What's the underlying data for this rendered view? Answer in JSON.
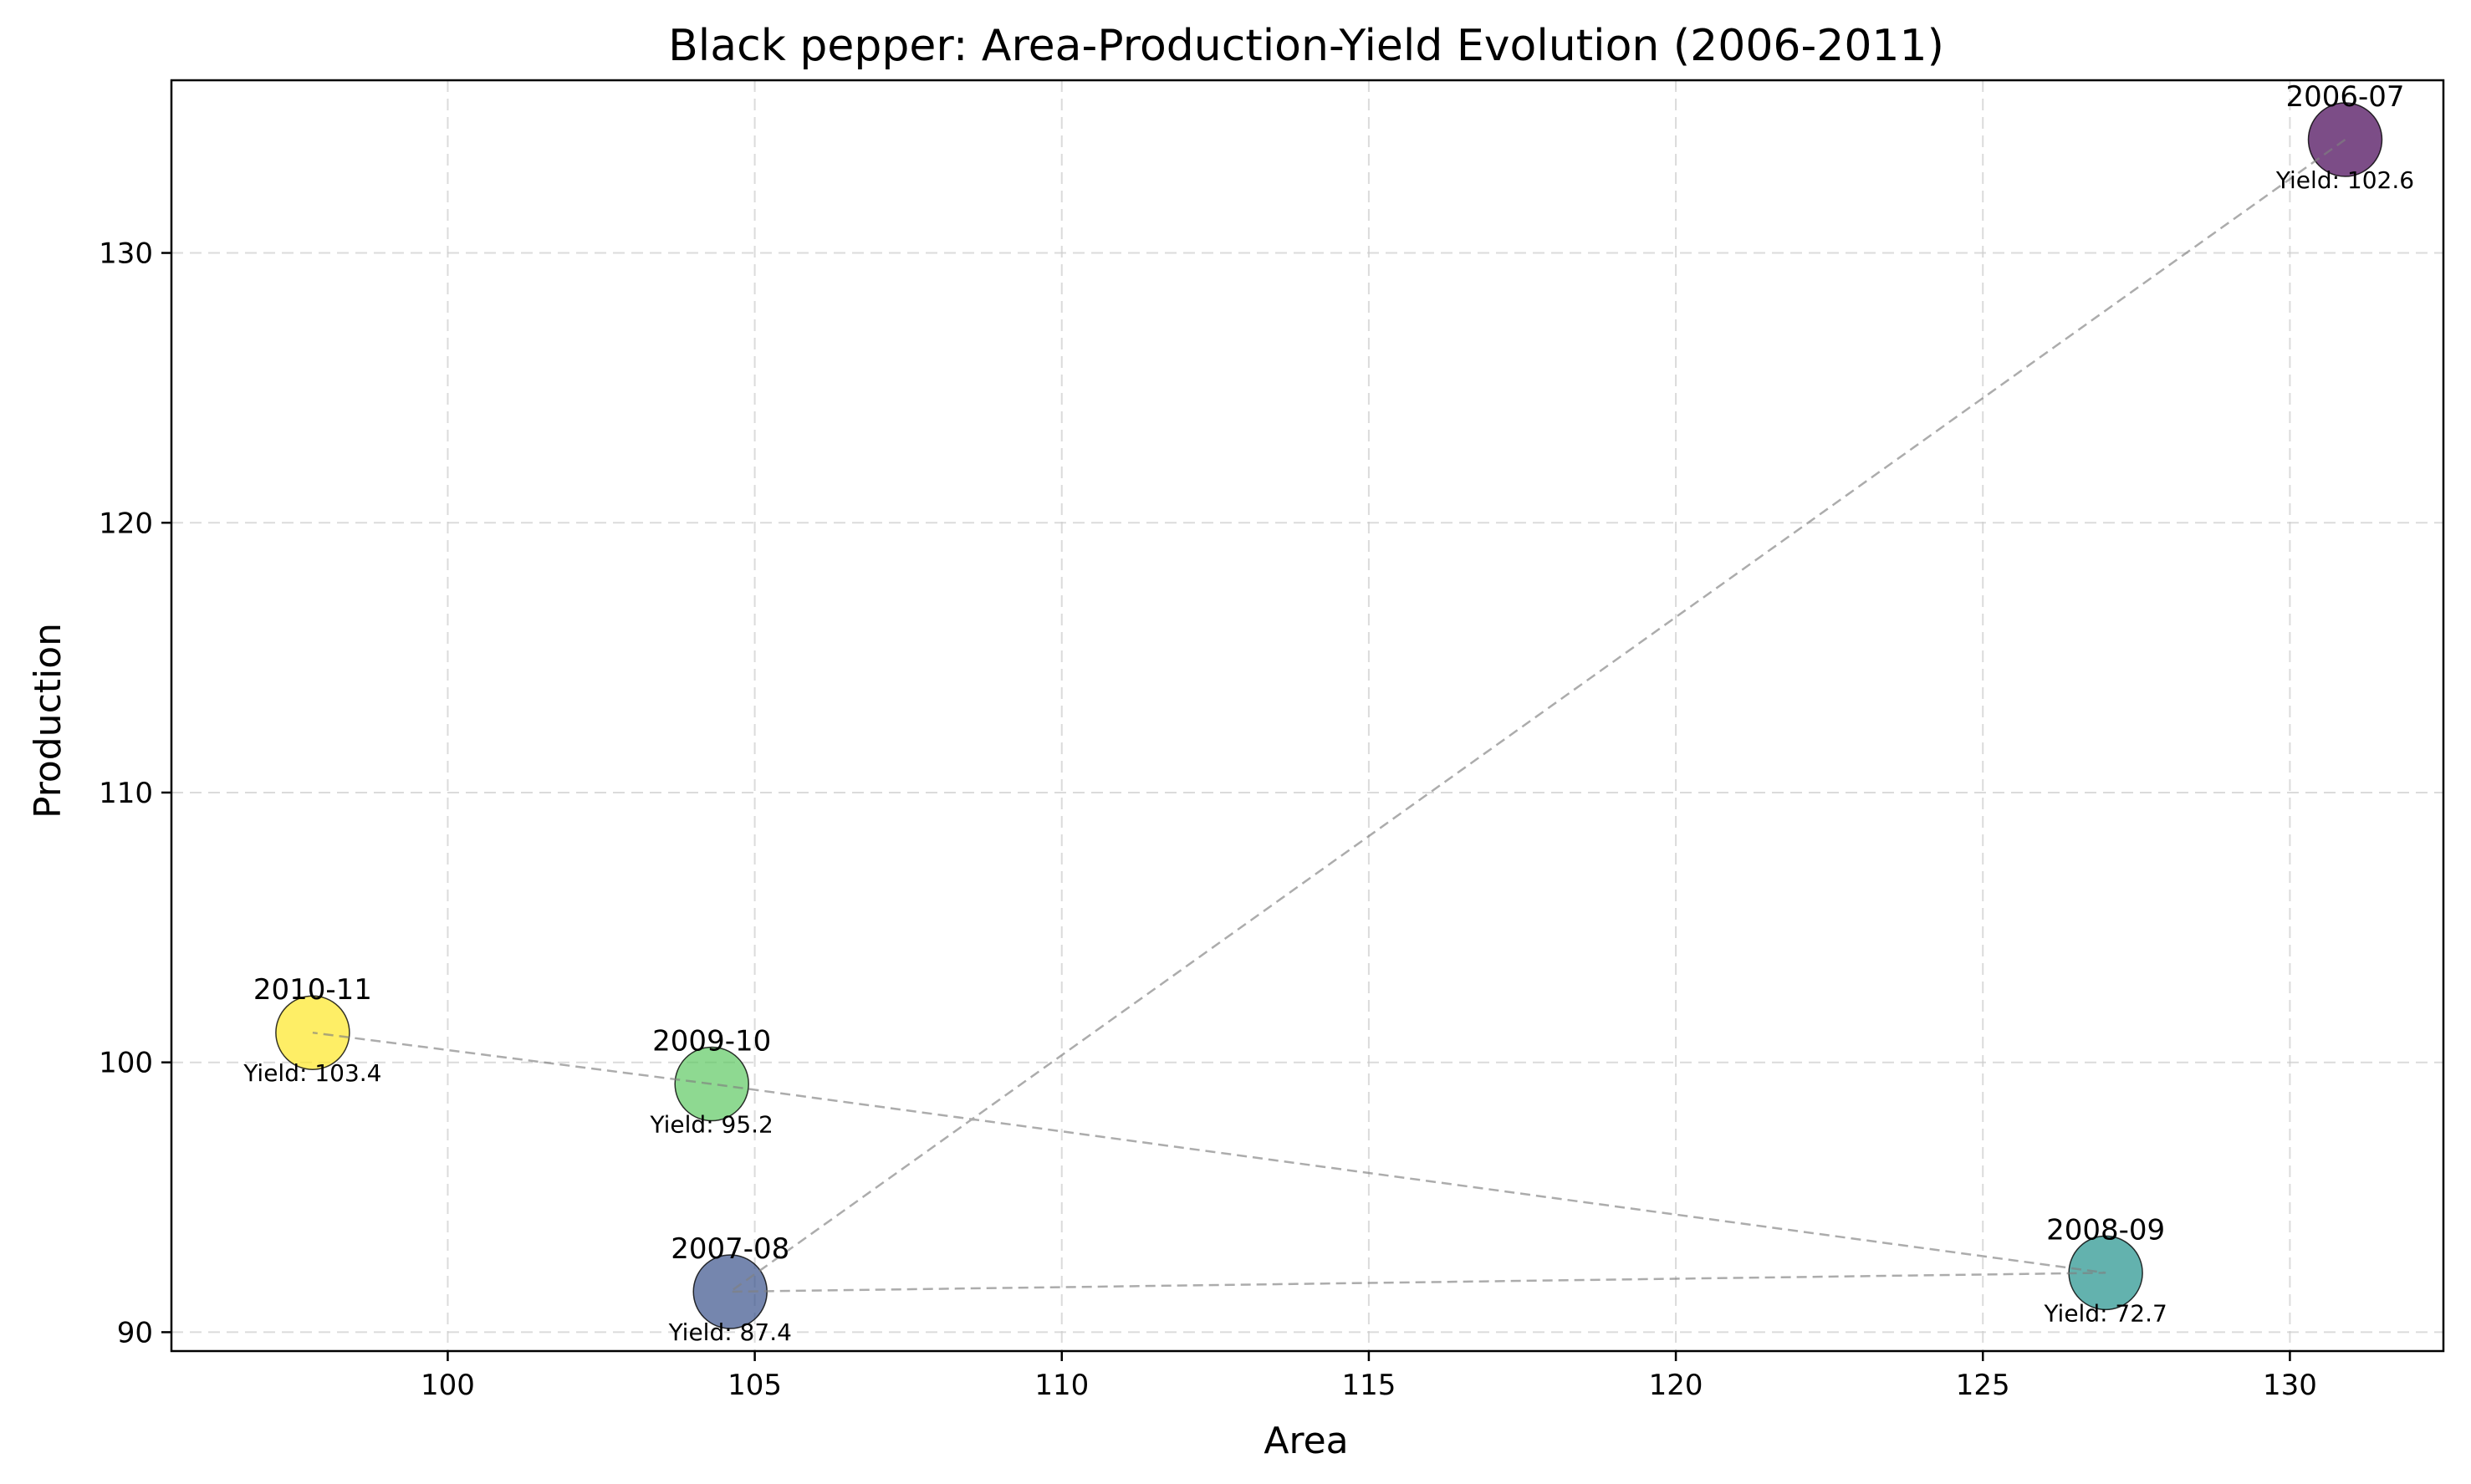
{
  "chart_data": {
    "type": "scatter",
    "title": "Black pepper: Area-Production-Yield Evolution (2006-2011)",
    "xlabel": "Area",
    "ylabel": "Production",
    "xlim": [
      95.5,
      132.5
    ],
    "ylim": [
      89.3,
      136.4
    ],
    "xticks": [
      100,
      105,
      110,
      115,
      120,
      125,
      130
    ],
    "yticks": [
      90,
      100,
      110,
      120,
      130
    ],
    "grid": true,
    "connect_points": true,
    "yield_label_prefix": "Yield: ",
    "points": [
      {
        "label": "2006-07",
        "x": 130.9,
        "y": 134.2,
        "yield": "102.6",
        "color": "#440154"
      },
      {
        "label": "2007-08",
        "x": 104.6,
        "y": 91.5,
        "yield": "87.4",
        "color": "#3b528b"
      },
      {
        "label": "2008-09",
        "x": 127.0,
        "y": 92.2,
        "yield": "72.7",
        "color": "#21918c"
      },
      {
        "label": "2009-10",
        "x": 104.3,
        "y": 99.2,
        "yield": "95.2",
        "color": "#5ec962"
      },
      {
        "label": "2010-11",
        "x": 97.8,
        "y": 101.1,
        "yield": "103.4",
        "color": "#fde725"
      }
    ]
  }
}
